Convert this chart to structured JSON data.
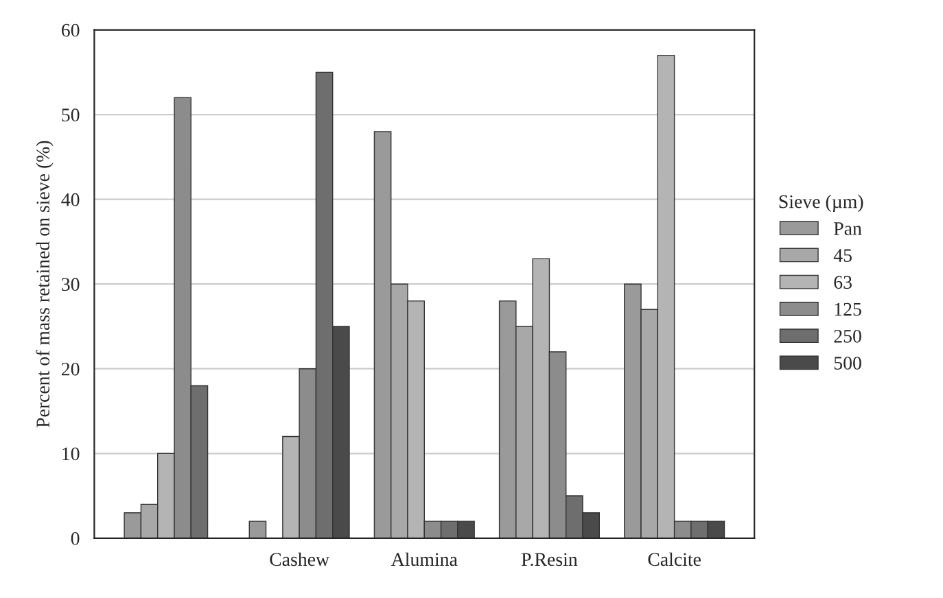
{
  "chart_data": {
    "type": "bar",
    "ylabel": "Percent of mass retained on sieve (%)",
    "legend_title": "Sieve (µm)",
    "categories": [
      null,
      "Cashew",
      "Alumina",
      "P.Resin",
      "Calcite"
    ],
    "series": [
      {
        "name": "Pan",
        "color": "#9a9a9a",
        "values": [
          3,
          2,
          48,
          28,
          30
        ]
      },
      {
        "name": "45",
        "color": "#a8a8a8",
        "values": [
          4,
          null,
          30,
          25,
          27
        ]
      },
      {
        "name": "63",
        "color": "#b4b4b4",
        "values": [
          10,
          12,
          28,
          33,
          57
        ]
      },
      {
        "name": "125",
        "color": "#8c8c8c",
        "values": [
          52,
          20,
          2,
          22,
          2
        ]
      },
      {
        "name": "250",
        "color": "#6e6e6e",
        "values": [
          18,
          55,
          2,
          5,
          2
        ]
      },
      {
        "name": "500",
        "color": "#4a4a4a",
        "values": [
          null,
          25,
          2,
          3,
          2
        ]
      }
    ],
    "ylim": [
      0,
      60
    ],
    "yticks": [
      0,
      10,
      20,
      30,
      40,
      50,
      60
    ],
    "grid": "y",
    "legend": "right"
  }
}
